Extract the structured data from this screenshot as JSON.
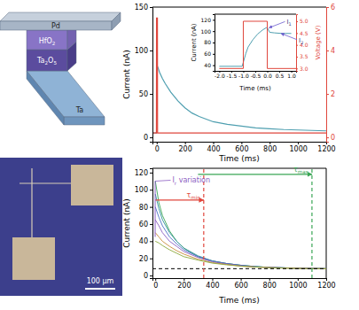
{
  "schematic": {
    "layers": [
      [
        "Pd"
      ],
      [
        "HfO",
        "2"
      ],
      [
        "Ta",
        "2",
        "O",
        "5"
      ],
      [
        "Ta"
      ]
    ]
  },
  "micrograph": {
    "scale_bar": "100 µm"
  },
  "chart_data": [
    {
      "type": "line",
      "x_label": "Time (ms)",
      "y_label": "Current (nA)",
      "xlim": [
        -30,
        1200
      ],
      "xticks": [
        0,
        200,
        400,
        600,
        800,
        1000,
        1200
      ],
      "ylim": [
        -5,
        150
      ],
      "yticks": [
        0,
        50,
        100,
        150
      ],
      "y2lim": [
        -0.2,
        6
      ],
      "y2ticks": [
        0,
        2,
        4,
        6
      ],
      "series": [
        {
          "color": "#4f9fb0",
          "x": [
            -30,
            -1,
            0,
            5,
            10,
            20,
            40,
            60,
            100,
            150,
            200,
            250,
            300,
            400,
            500,
            600,
            700,
            800,
            900,
            1000,
            1100,
            1200
          ],
          "values": [
            5,
            5,
            85,
            82,
            80,
            75,
            68,
            62,
            52,
            42,
            34,
            28,
            24,
            18,
            15,
            13,
            11,
            10,
            9,
            8.5,
            8,
            7.5
          ]
        },
        {
          "color": "#e0463c",
          "axis": "y2",
          "x": [
            -30,
            -2,
            -1,
            5,
            6,
            1200
          ],
          "values": [
            0.2,
            0.2,
            5.5,
            5.5,
            0.2,
            0.2
          ]
        }
      ]
    },
    {
      "type": "line",
      "x_label": "Time (ms)",
      "y_label": "Current (nA)",
      "xlim": [
        -20,
        1200
      ],
      "xticks": [
        0,
        200,
        400,
        600,
        800,
        1000,
        1200
      ],
      "ylim": [
        -3,
        125
      ],
      "yticks": [
        0,
        20,
        40,
        60,
        80,
        100,
        120
      ],
      "x": [
        0,
        25,
        50,
        100,
        150,
        200,
        300,
        400,
        500,
        600,
        700,
        800,
        900,
        1000,
        1100,
        1200
      ],
      "series": [
        {
          "color": "#3aa655",
          "values": [
            110,
            85,
            70,
            52,
            40,
            32,
            22,
            17,
            14,
            12,
            10.5,
            9.5,
            9,
            8.5,
            8.2,
            8
          ]
        },
        {
          "color": "#2f8f9d",
          "values": [
            95,
            78,
            65,
            50,
            40,
            32,
            23,
            17,
            14,
            12,
            10.5,
            9.5,
            9,
            8.5,
            8.2,
            8
          ]
        },
        {
          "color": "#4a6fc7",
          "values": [
            80,
            68,
            58,
            45,
            37,
            30,
            22,
            17,
            14,
            12,
            10.5,
            9.5,
            9,
            8.5,
            8.2,
            8
          ]
        },
        {
          "color": "#8a5cc2",
          "values": [
            65,
            58,
            50,
            40,
            34,
            28,
            21,
            16,
            13.5,
            11.5,
            10,
            9.5,
            9,
            8.5,
            8.2,
            8
          ]
        },
        {
          "color": "#c98a3a",
          "values": [
            50,
            45,
            40,
            34,
            29,
            25,
            19,
            15,
            13,
            11,
            10,
            9.3,
            8.8,
            8.4,
            8.1,
            8
          ]
        },
        {
          "color": "#8aa83a",
          "values": [
            40,
            38,
            35,
            30,
            26,
            22,
            18,
            14.5,
            12.5,
            11,
            10,
            9.2,
            8.7,
            8.3,
            8.1,
            8
          ]
        }
      ],
      "hline": {
        "y": 8,
        "color": "#000000",
        "line_style": "dashed"
      },
      "vlines": [
        {
          "x": 340,
          "from": 0,
          "y": 88,
          "text": [
            "τ",
            "min"
          ],
          "color": "#e0463c",
          "line_style": "dashed"
        },
        {
          "x": 1100,
          "from": 300,
          "y": 118,
          "text": [
            "τ",
            "max"
          ],
          "color": "#3aa655",
          "line_style": "dashed"
        }
      ],
      "annotations": [
        {
          "text": [
            "I",
            "r",
            " variation"
          ],
          "x": 120,
          "y": 108,
          "span": [
            45,
            110
          ],
          "color": "#8a5cc2"
        }
      ]
    },
    {
      "type": "line",
      "x_label": "Time (ms)",
      "y_label": "Current (nA)",
      "y2_label": "Voltage (V)",
      "xlim": [
        -2.2,
        1.2
      ],
      "xticks": [
        {
          "value": -2,
          "label": "-2.0"
        },
        {
          "value": -1.5,
          "label": "-1.5"
        },
        {
          "value": -1,
          "label": "-1.0"
        },
        {
          "value": -0.5,
          "label": "-0.5"
        },
        {
          "value": 0,
          "label": "0.0"
        },
        {
          "value": 0.5,
          "label": "0.5"
        },
        {
          "value": 1,
          "label": "1.0"
        }
      ],
      "ylim": [
        30,
        130
      ],
      "yticks": [
        40,
        60,
        80,
        100,
        120
      ],
      "y2lim": [
        2.9,
        5.3
      ],
      "y2ticks": [
        {
          "value": 3,
          "label": "3.0"
        },
        {
          "value": 3.5,
          "label": "3.5"
        },
        {
          "value": 4,
          "label": "4.0"
        },
        {
          "value": 4.5,
          "label": "4.5"
        },
        {
          "value": 5,
          "label": "5.0"
        }
      ],
      "series": [
        {
          "color": "#4f9fb0",
          "x": [
            -2,
            -1.5,
            -1.05,
            -1,
            -0.9,
            -0.8,
            -0.6,
            -0.4,
            -0.2,
            -0.05,
            0,
            0.1,
            0.3,
            0.6,
            1.0
          ],
          "values": [
            38,
            38,
            38,
            45,
            60,
            72,
            85,
            95,
            102,
            106,
            106,
            98,
            97,
            96,
            96
          ]
        },
        {
          "color": "#e0463c",
          "axis": "y2",
          "x": [
            -2,
            -1,
            -1,
            0,
            0,
            1.2
          ],
          "values": [
            3.0,
            3.0,
            5.0,
            5.0,
            3.0,
            3.0
          ]
        }
      ],
      "annotations": [
        {
          "text": [
            "I",
            "1"
          ],
          "x": 0,
          "y": 106
        },
        {
          "text": [
            "I",
            "2"
          ],
          "x": 0.5,
          "y": 96
        }
      ]
    }
  ]
}
